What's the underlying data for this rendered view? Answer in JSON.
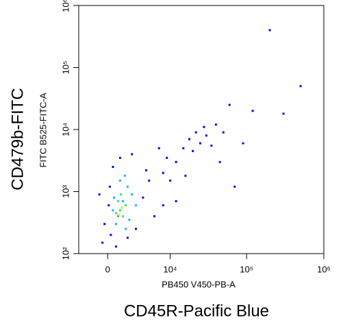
{
  "chart_data": {
    "type": "scatter",
    "xlabel": "PB450 V450-PB-A",
    "ylabel": "FITC B525-FITC-A",
    "x_marker_label": "CD45R-Pacific Blue",
    "y_marker_label": "CD479b-FITC",
    "xscale": "biexponential",
    "yscale": "log",
    "xlim": [
      -3100,
      1000000
    ],
    "ylim": [
      100,
      1000000
    ],
    "xticks": [
      0,
      {
        "value": 10000,
        "label": "10⁴"
      },
      {
        "value": 100000,
        "label": "10⁵"
      },
      {
        "value": 1000000,
        "label": "10⁶"
      }
    ],
    "yticks": [
      {
        "value": 100,
        "label": "10²"
      },
      {
        "value": 1000,
        "label": "10³"
      },
      {
        "value": 10000,
        "label": "10⁴"
      },
      {
        "value": 100000,
        "label": "10⁵"
      },
      {
        "value": 1000000,
        "label": "10⁶"
      }
    ],
    "series": [
      {
        "color": "#0000ff",
        "x": [
          -500,
          300,
          800,
          200,
          500,
          1200,
          2500,
          4000,
          6000,
          8000,
          10000,
          12000,
          15000,
          18000,
          20000,
          25000,
          30000,
          35000,
          40000,
          45000,
          50000,
          60000,
          70000,
          90000,
          120000,
          200000,
          500000,
          300000,
          8000,
          5000,
          3000,
          2000,
          12000,
          16000,
          22000,
          28000,
          9000,
          7000,
          4500,
          100,
          -800,
          -300
        ],
        "values": [
          150,
          200,
          130,
          1200,
          2500,
          3500,
          4000,
          800,
          400,
          600,
          1500,
          3000,
          5000,
          7000,
          4500,
          6000,
          8000,
          5500,
          12000,
          3000,
          9000,
          25000,
          1200,
          6000,
          20000,
          400000,
          50000,
          18000,
          2000,
          1500,
          250,
          180,
          700,
          1800,
          9000,
          11000,
          3500,
          5000,
          2200,
          600,
          900,
          300
        ]
      },
      {
        "color": "#00b8ff",
        "x": [
          1000,
          1500,
          2000,
          800,
          1800,
          2500,
          1200,
          600,
          3000,
          2200,
          500,
          1700
        ],
        "values": [
          400,
          700,
          1200,
          300,
          250,
          900,
          1500,
          800,
          600,
          350,
          500,
          1800
        ]
      },
      {
        "color": "#30e080",
        "x": [
          1200,
          1500,
          1000,
          1800,
          1300,
          800
        ],
        "values": [
          500,
          400,
          700,
          600,
          900,
          450
        ]
      },
      {
        "color": "#e8e000",
        "x": [
          1400,
          1100
        ],
        "values": [
          550,
          420
        ]
      }
    ]
  }
}
